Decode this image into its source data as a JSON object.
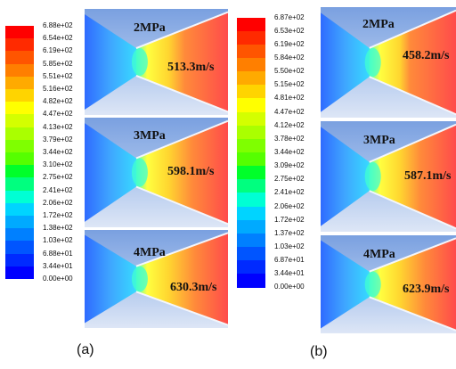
{
  "panels": [
    {
      "caption": "(a)",
      "colorbar": {
        "labels": [
          "6.88e+02",
          "6.54e+02",
          "6.19e+02",
          "5.85e+02",
          "5.51e+02",
          "5.16e+02",
          "4.82e+02",
          "4.47e+02",
          "4.13e+02",
          "3.79e+02",
          "3.44e+02",
          "3.10e+02",
          "2.75e+02",
          "2.41e+02",
          "2.06e+02",
          "1.72e+02",
          "1.38e+02",
          "1.03e+02",
          "6.88e+01",
          "3.44e+01",
          "0.00e+00"
        ]
      },
      "cases": [
        {
          "pressure": "2MPa",
          "velocity": "513.3m/s",
          "exit_fraction": 0.75
        },
        {
          "pressure": "3MPa",
          "velocity": "598.1m/s",
          "exit_fraction": 0.87
        },
        {
          "pressure": "4MPa",
          "velocity": "630.3m/s",
          "exit_fraction": 0.92
        }
      ]
    },
    {
      "caption": "(b)",
      "colorbar": {
        "labels": [
          "6.87e+02",
          "6.53e+02",
          "6.19e+02",
          "5.84e+02",
          "5.50e+02",
          "5.15e+02",
          "4.81e+02",
          "4.47e+02",
          "4.12e+02",
          "3.78e+02",
          "3.44e+02",
          "3.09e+02",
          "2.75e+02",
          "2.41e+02",
          "2.06e+02",
          "1.72e+02",
          "1.37e+02",
          "1.03e+02",
          "6.87e+01",
          "3.44e+01",
          "0.00e+00"
        ]
      },
      "cases": [
        {
          "pressure": "2MPa",
          "velocity": "458.2m/s",
          "exit_fraction": 0.67
        },
        {
          "pressure": "3MPa",
          "velocity": "587.1m/s",
          "exit_fraction": 0.85
        },
        {
          "pressure": "4MPa",
          "velocity": "623.9m/s",
          "exit_fraction": 0.91
        }
      ]
    }
  ],
  "colors": {
    "scale": [
      "#ff0000",
      "#ff2a00",
      "#ff5500",
      "#ff7f00",
      "#ffaa00",
      "#ffd400",
      "#ffff00",
      "#d4ff00",
      "#aaff00",
      "#7fff00",
      "#55ff00",
      "#00ff2a",
      "#00ff7f",
      "#00ffd4",
      "#00d4ff",
      "#00aaff",
      "#0080ff",
      "#0055ff",
      "#002aff",
      "#0000ff"
    ],
    "background": "#b4c8e6"
  }
}
